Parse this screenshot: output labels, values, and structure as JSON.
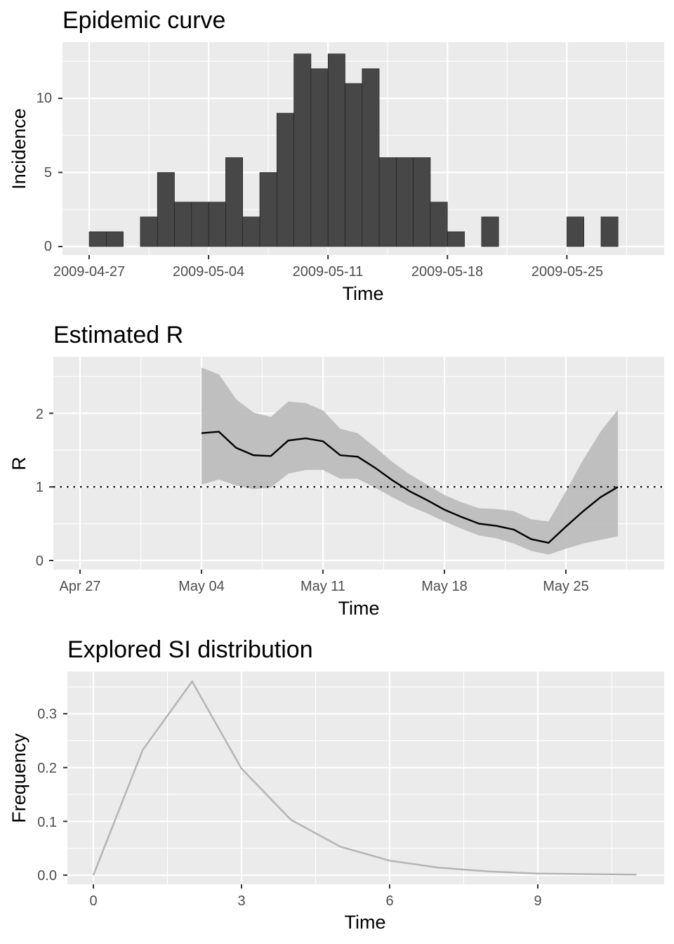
{
  "chart_data": [
    {
      "type": "bar",
      "title": "Epidemic curve",
      "xlabel": "Time",
      "ylabel": "Incidence",
      "x_tick_labels": [
        "2009-04-27",
        "2009-05-04",
        "2009-05-11",
        "2009-05-18",
        "2009-05-25"
      ],
      "y_tick_labels": [
        "0",
        "5",
        "10"
      ],
      "ylim": [
        0,
        13
      ],
      "bar_color": "#474747",
      "categories": [
        "2009-04-27",
        "2009-04-28",
        "2009-04-29",
        "2009-04-30",
        "2009-05-01",
        "2009-05-02",
        "2009-05-03",
        "2009-05-04",
        "2009-05-05",
        "2009-05-06",
        "2009-05-07",
        "2009-05-08",
        "2009-05-09",
        "2009-05-10",
        "2009-05-11",
        "2009-05-12",
        "2009-05-13",
        "2009-05-14",
        "2009-05-15",
        "2009-05-16",
        "2009-05-17",
        "2009-05-18",
        "2009-05-19",
        "2009-05-20",
        "2009-05-21",
        "2009-05-22",
        "2009-05-23",
        "2009-05-24",
        "2009-05-25",
        "2009-05-26",
        "2009-05-27",
        "2009-05-28"
      ],
      "values": [
        1,
        1,
        0,
        2,
        5,
        3,
        3,
        3,
        6,
        2,
        5,
        9,
        13,
        12,
        13,
        11,
        12,
        6,
        6,
        6,
        3,
        1,
        0,
        2,
        0,
        0,
        0,
        0,
        2,
        0,
        2,
        0
      ],
      "grid": true
    },
    {
      "type": "line",
      "title": "Estimated R",
      "xlabel": "Time",
      "ylabel": "R",
      "x_tick_labels": [
        "Apr 27",
        "May 04",
        "May 11",
        "May 18",
        "May 25"
      ],
      "y_tick_labels": [
        "0",
        "1",
        "2"
      ],
      "x": [
        "2009-05-04",
        "2009-05-05",
        "2009-05-06",
        "2009-05-07",
        "2009-05-08",
        "2009-05-09",
        "2009-05-10",
        "2009-05-11",
        "2009-05-12",
        "2009-05-13",
        "2009-05-14",
        "2009-05-15",
        "2009-05-16",
        "2009-05-17",
        "2009-05-18",
        "2009-05-19",
        "2009-05-20",
        "2009-05-21",
        "2009-05-22",
        "2009-05-23",
        "2009-05-24",
        "2009-05-25",
        "2009-05-26",
        "2009-05-27",
        "2009-05-28"
      ],
      "mean": [
        1.73,
        1.75,
        1.53,
        1.43,
        1.42,
        1.63,
        1.66,
        1.62,
        1.43,
        1.41,
        1.26,
        1.09,
        0.94,
        0.82,
        0.69,
        0.59,
        0.5,
        0.47,
        0.42,
        0.29,
        0.24,
        0.46,
        0.67,
        0.86,
        1.0
      ],
      "lower": [
        1.03,
        1.1,
        1.02,
        0.97,
        0.99,
        1.18,
        1.23,
        1.23,
        1.11,
        1.11,
        0.99,
        0.86,
        0.74,
        0.64,
        0.53,
        0.43,
        0.34,
        0.3,
        0.23,
        0.13,
        0.08,
        0.16,
        0.23,
        0.28,
        0.33
      ],
      "upper": [
        2.62,
        2.53,
        2.19,
        2.01,
        1.95,
        2.16,
        2.14,
        2.04,
        1.79,
        1.73,
        1.54,
        1.34,
        1.17,
        1.03,
        0.89,
        0.79,
        0.71,
        0.7,
        0.67,
        0.56,
        0.53,
        0.94,
        1.37,
        1.75,
        2.05
      ],
      "ylim": [
        -0.05,
        2.75
      ],
      "reference_line": 1,
      "line_color": "#000000",
      "ribbon_color": "#bdbdbd",
      "grid": true
    },
    {
      "type": "line",
      "title": "Explored SI distribution",
      "xlabel": "Time",
      "ylabel": "Frequency",
      "x_tick_labels": [
        "0",
        "3",
        "6",
        "9"
      ],
      "y_tick_labels": [
        "0.0",
        "0.1",
        "0.2",
        "0.3"
      ],
      "x": [
        0,
        1,
        2,
        3,
        4,
        5,
        6,
        7,
        8,
        9,
        10,
        11
      ],
      "values": [
        0.0,
        0.233,
        0.36,
        0.198,
        0.103,
        0.053,
        0.027,
        0.014,
        0.007,
        0.003,
        0.002,
        0.001
      ],
      "xlim": [
        -0.55,
        11.55
      ],
      "ylim": [
        -0.018,
        0.378
      ],
      "line_color": "#b3b3b3",
      "grid": true
    }
  ]
}
